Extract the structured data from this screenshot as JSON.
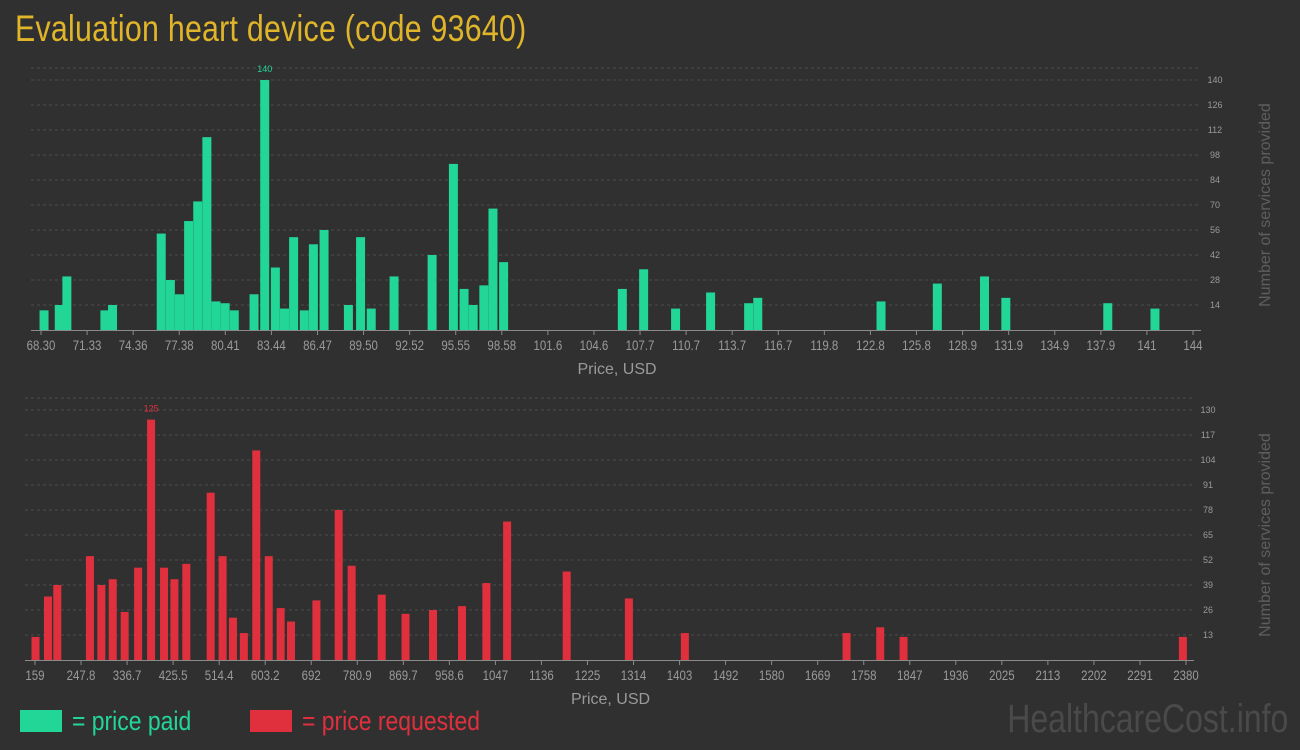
{
  "title": "Evaluation heart device (code 93640)",
  "watermark": "HealthcareCost.info",
  "legend": {
    "paid_label": "= price paid",
    "requested_label": "= price requested",
    "paid_color": "#22d698",
    "requested_color": "#e0303e"
  },
  "chart_data": [
    {
      "type": "bar",
      "name": "paid",
      "color": "#22d698",
      "xlabel": "Price, USD",
      "ylabel": "Number of services provided",
      "xlim": [
        68.3,
        144
      ],
      "ylim": [
        0,
        140
      ],
      "x_tick_labels": [
        "68.30",
        "71.33",
        "74.36",
        "77.38",
        "80.41",
        "83.44",
        "86.47",
        "89.50",
        "92.52",
        "95.55",
        "98.58",
        "101.6",
        "104.6",
        "107.7",
        "110.7",
        "113.7",
        "116.7",
        "119.8",
        "122.8",
        "125.8",
        "128.9",
        "131.9",
        "134.9",
        "137.9",
        "141",
        "144"
      ],
      "y_ticks": [
        14,
        28,
        42,
        56,
        70,
        84,
        98,
        112,
        126,
        140
      ],
      "peak_label": "140",
      "bars": [
        {
          "x": 68.5,
          "v": 11
        },
        {
          "x": 69.5,
          "v": 14
        },
        {
          "x": 70.0,
          "v": 30
        },
        {
          "x": 72.5,
          "v": 11
        },
        {
          "x": 73.0,
          "v": 14
        },
        {
          "x": 76.2,
          "v": 54
        },
        {
          "x": 76.8,
          "v": 28
        },
        {
          "x": 77.4,
          "v": 20
        },
        {
          "x": 78.0,
          "v": 61
        },
        {
          "x": 78.6,
          "v": 72
        },
        {
          "x": 79.2,
          "v": 108
        },
        {
          "x": 79.8,
          "v": 16
        },
        {
          "x": 80.4,
          "v": 15
        },
        {
          "x": 81.0,
          "v": 11
        },
        {
          "x": 82.3,
          "v": 20
        },
        {
          "x": 83.0,
          "v": 140
        },
        {
          "x": 83.7,
          "v": 35
        },
        {
          "x": 84.3,
          "v": 12
        },
        {
          "x": 84.9,
          "v": 52
        },
        {
          "x": 85.6,
          "v": 11
        },
        {
          "x": 86.2,
          "v": 48
        },
        {
          "x": 86.9,
          "v": 56
        },
        {
          "x": 88.5,
          "v": 14
        },
        {
          "x": 89.3,
          "v": 52
        },
        {
          "x": 90.0,
          "v": 12
        },
        {
          "x": 91.5,
          "v": 30
        },
        {
          "x": 94.0,
          "v": 42
        },
        {
          "x": 95.4,
          "v": 93
        },
        {
          "x": 96.1,
          "v": 23
        },
        {
          "x": 96.7,
          "v": 14
        },
        {
          "x": 97.4,
          "v": 25
        },
        {
          "x": 98.0,
          "v": 68
        },
        {
          "x": 98.7,
          "v": 38
        },
        {
          "x": 106.5,
          "v": 23
        },
        {
          "x": 107.9,
          "v": 34
        },
        {
          "x": 110.0,
          "v": 12
        },
        {
          "x": 112.3,
          "v": 21
        },
        {
          "x": 114.8,
          "v": 15
        },
        {
          "x": 115.4,
          "v": 18
        },
        {
          "x": 123.5,
          "v": 16
        },
        {
          "x": 127.2,
          "v": 26
        },
        {
          "x": 130.3,
          "v": 30
        },
        {
          "x": 131.7,
          "v": 18
        },
        {
          "x": 138.4,
          "v": 15
        },
        {
          "x": 141.5,
          "v": 12
        }
      ]
    },
    {
      "type": "bar",
      "name": "requested",
      "color": "#e0303e",
      "xlabel": "Price, USD",
      "ylabel": "Number of services provided",
      "xlim": [
        159,
        2380
      ],
      "ylim": [
        0,
        130
      ],
      "x_tick_labels": [
        "159",
        "247.8",
        "336.7",
        "425.5",
        "514.4",
        "603.2",
        "692",
        "780.9",
        "869.7",
        "958.6",
        "1047",
        "1136",
        "1225",
        "1314",
        "1403",
        "1492",
        "1580",
        "1669",
        "1758",
        "1847",
        "1936",
        "2025",
        "2113",
        "2202",
        "2291",
        "2380"
      ],
      "y_ticks": [
        13,
        26,
        39,
        52,
        65,
        78,
        91,
        104,
        117,
        130
      ],
      "peak_label": "125",
      "bars": [
        {
          "x": 160,
          "v": 12
        },
        {
          "x": 184,
          "v": 33
        },
        {
          "x": 202,
          "v": 39
        },
        {
          "x": 265,
          "v": 54
        },
        {
          "x": 287,
          "v": 39
        },
        {
          "x": 309,
          "v": 42
        },
        {
          "x": 332,
          "v": 25
        },
        {
          "x": 358,
          "v": 48
        },
        {
          "x": 383,
          "v": 125
        },
        {
          "x": 408,
          "v": 48
        },
        {
          "x": 428,
          "v": 42
        },
        {
          "x": 451,
          "v": 50
        },
        {
          "x": 498,
          "v": 87
        },
        {
          "x": 521,
          "v": 54
        },
        {
          "x": 541,
          "v": 22
        },
        {
          "x": 562,
          "v": 14
        },
        {
          "x": 586,
          "v": 109
        },
        {
          "x": 610,
          "v": 54
        },
        {
          "x": 633,
          "v": 27
        },
        {
          "x": 653,
          "v": 20
        },
        {
          "x": 702,
          "v": 31
        },
        {
          "x": 745,
          "v": 78
        },
        {
          "x": 770,
          "v": 49
        },
        {
          "x": 828,
          "v": 34
        },
        {
          "x": 874,
          "v": 24
        },
        {
          "x": 927,
          "v": 26
        },
        {
          "x": 983,
          "v": 28
        },
        {
          "x": 1030,
          "v": 40
        },
        {
          "x": 1070,
          "v": 72
        },
        {
          "x": 1185,
          "v": 46
        },
        {
          "x": 1305,
          "v": 32
        },
        {
          "x": 1413,
          "v": 14
        },
        {
          "x": 1725,
          "v": 14
        },
        {
          "x": 1790,
          "v": 17
        },
        {
          "x": 1835,
          "v": 12
        },
        {
          "x": 2374,
          "v": 12
        }
      ]
    }
  ]
}
